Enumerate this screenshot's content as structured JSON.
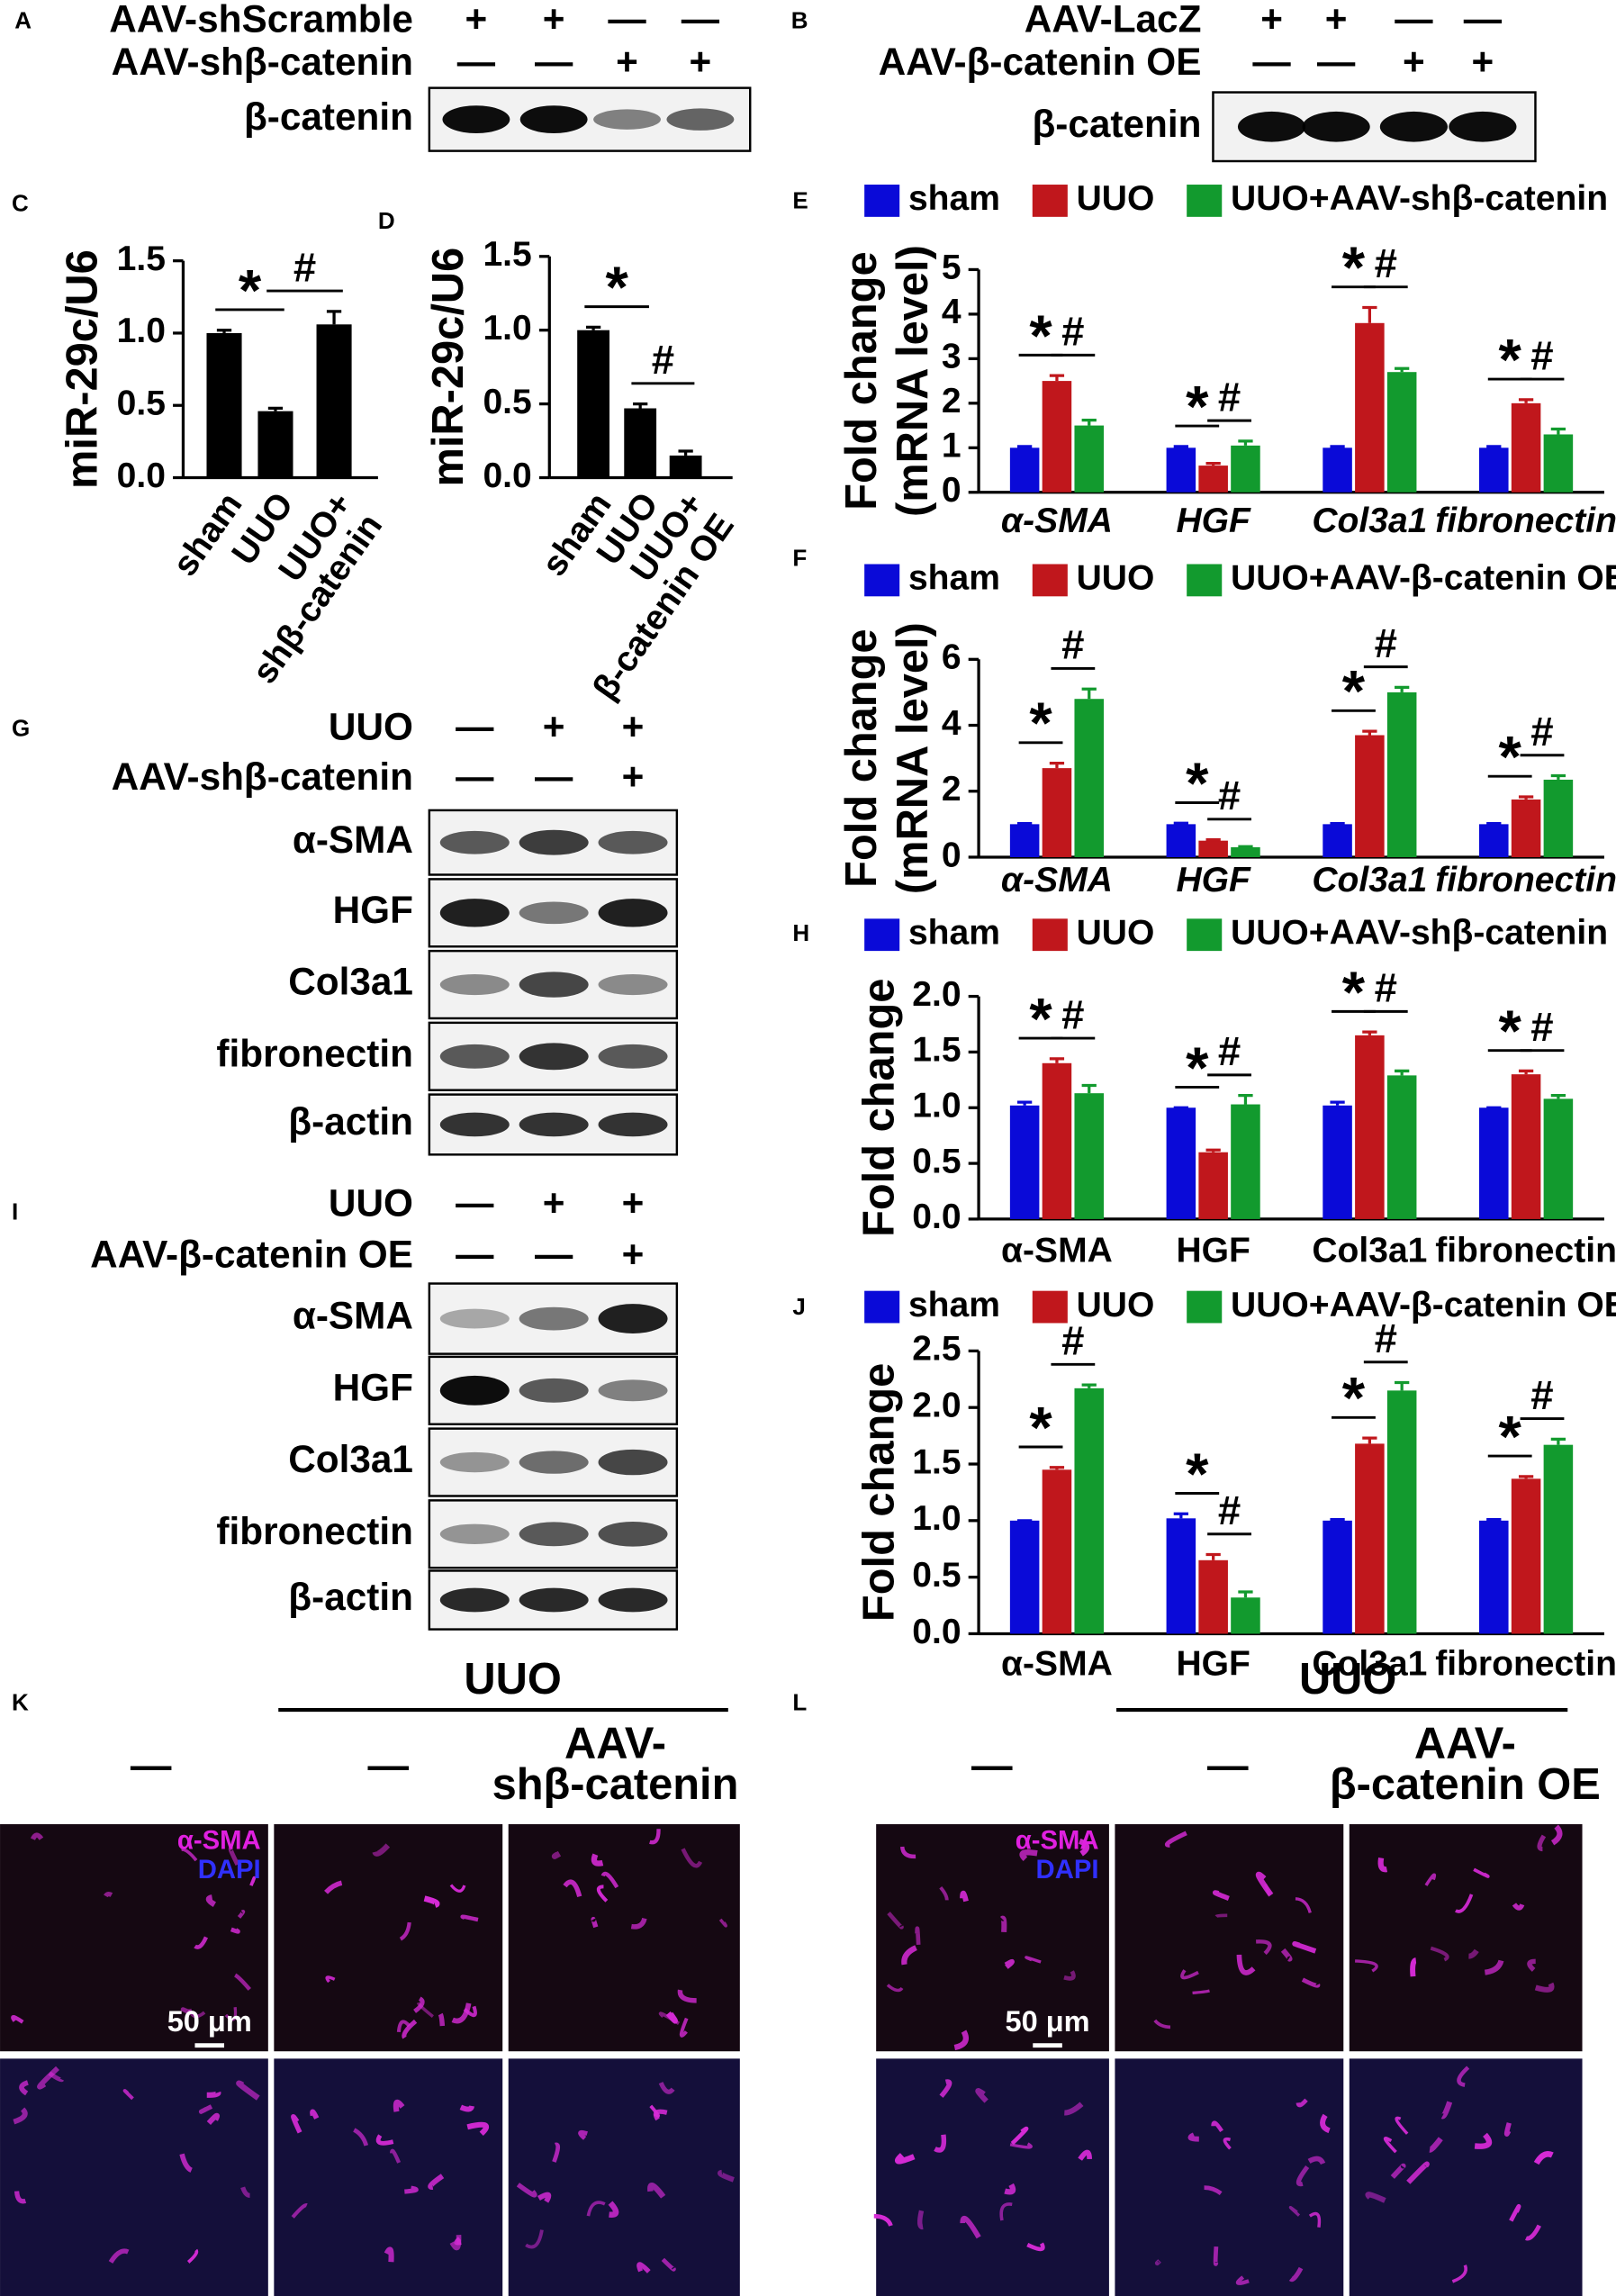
{
  "panel_labels": [
    "A",
    "B",
    "C",
    "D",
    "E",
    "F",
    "G",
    "H",
    "I",
    "J",
    "K",
    "L"
  ],
  "blots": [
    {
      "treatments": [
        {
          "label": "AAV-shScramble",
          "signs": [
            "+",
            "+",
            "—",
            "—"
          ]
        },
        {
          "label": "AAV-shβ-catenin",
          "signs": [
            "—",
            "—",
            "+",
            "+"
          ]
        }
      ],
      "bands": [
        "β-catenin"
      ]
    },
    {
      "treatments": [
        {
          "label": "AAV-LacZ",
          "signs": [
            "+",
            "+",
            "—",
            "—"
          ]
        },
        {
          "label": "AAV-β-catenin OE",
          "signs": [
            "—",
            "—",
            "+",
            "+"
          ]
        }
      ],
      "bands": [
        "β-catenin"
      ]
    },
    {
      "treatments": [
        {
          "label": "UUO",
          "signs": [
            "—",
            "+",
            "+"
          ]
        },
        {
          "label": "AAV-shβ-catenin",
          "signs": [
            "—",
            "—",
            "+"
          ]
        }
      ],
      "bands": [
        "α-SMA",
        "HGF",
        "Col3a1",
        "fibronectin",
        "β-actin"
      ]
    },
    {
      "treatments": [
        {
          "label": "UUO",
          "signs": [
            "—",
            "+",
            "+"
          ]
        },
        {
          "label": "AAV-β-catenin OE",
          "signs": [
            "—",
            "—",
            "+"
          ]
        }
      ],
      "bands": [
        "α-SMA",
        "HGF",
        "Col3a1",
        "fibronectin",
        "β-actin"
      ]
    }
  ],
  "chart_data": [
    {
      "type": "bar",
      "ylabel": "miR-29c/U6",
      "categories": [
        "sham",
        "UUO",
        "UUO+ shβ-catenin"
      ],
      "values": [
        1,
        0.46,
        1.06
      ],
      "errors": [
        0.02,
        0.02,
        0.09
      ],
      "color": "#000000",
      "ylim": [
        0,
        1.5
      ],
      "yticks": [
        {
          "value": 0,
          "label": "0.0"
        },
        0.5,
        {
          "value": 1,
          "label": "1.0"
        },
        1.5
      ],
      "markers": [
        "*",
        "#"
      ]
    },
    {
      "type": "bar",
      "ylabel": "miR-29c/U6",
      "categories": [
        "sham",
        "UUO",
        "UUO+ β-catenin OE"
      ],
      "values": [
        1,
        0.47,
        0.15
      ],
      "errors": [
        0.02,
        0.03,
        0.03
      ],
      "color": "#000000",
      "ylim": [
        0,
        1.5
      ],
      "yticks": [
        {
          "value": 0,
          "label": "0.0"
        },
        0.5,
        {
          "value": 1,
          "label": "1.0"
        },
        1.5
      ],
      "markers": [
        "*",
        "#"
      ]
    },
    {
      "type": "bar",
      "ylabel": [
        "Fold change",
        "(mRNA level)"
      ],
      "categories": [
        "α-SMA",
        "HGF",
        "Col3a1",
        "fibronectin"
      ],
      "category_italic": true,
      "series": [
        {
          "name": "sham",
          "color": "#0a0ad8",
          "values": [
            1,
            1,
            1,
            1
          ],
          "errors": [
            0.03,
            0.03,
            0.03,
            0.03
          ]
        },
        {
          "name": "UUO",
          "color": "#c0171c",
          "values": [
            2.5,
            0.6,
            3.8,
            2
          ],
          "errors": [
            0.12,
            0.05,
            0.35,
            0.08
          ]
        },
        {
          "name": "UUO+AAV-shβ-catenin",
          "color": "#129a2e",
          "values": [
            1.5,
            1.05,
            2.7,
            1.3
          ],
          "errors": [
            0.12,
            0.1,
            0.08,
            0.12
          ]
        }
      ],
      "ylim": [
        0,
        5
      ],
      "yticks": [
        0,
        1,
        2,
        3,
        4,
        5
      ],
      "markers": [
        "*",
        "#"
      ]
    },
    {
      "type": "bar",
      "ylabel": [
        "Fold change",
        "(mRNA level)"
      ],
      "categories": [
        "α-SMA",
        "HGF",
        "Col3a1",
        "fibronectin"
      ],
      "category_italic": true,
      "series": [
        {
          "name": "sham",
          "color": "#0a0ad8",
          "values": [
            1,
            1,
            1,
            1
          ],
          "errors": [
            0.02,
            0.03,
            0.02,
            0.02
          ]
        },
        {
          "name": "UUO",
          "color": "#c0171c",
          "values": [
            2.7,
            0.5,
            3.7,
            1.75
          ],
          "errors": [
            0.15,
            0.03,
            0.12,
            0.08
          ]
        },
        {
          "name": "UUO+AAV-β-catenin OE",
          "color": "#129a2e",
          "values": [
            4.8,
            0.3,
            5,
            2.35
          ],
          "errors": [
            0.3,
            0.02,
            0.15,
            0.12
          ]
        }
      ],
      "ylim": [
        0,
        6
      ],
      "yticks": [
        0,
        2,
        4,
        6
      ],
      "markers": [
        "*",
        "#"
      ]
    },
    {
      "type": "bar",
      "ylabel": "Fold change",
      "categories": [
        "α-SMA",
        "HGF",
        "Col3a1",
        "fibronectin"
      ],
      "category_italic": false,
      "series": [
        {
          "name": "sham",
          "color": "#0a0ad8",
          "values": [
            1.02,
            1,
            1.02,
            1
          ],
          "errors": [
            0.03,
            0,
            0.03,
            0
          ]
        },
        {
          "name": "UUO",
          "color": "#c0171c",
          "values": [
            1.4,
            0.6,
            1.65,
            1.3
          ],
          "errors": [
            0.04,
            0.02,
            0.03,
            0.03
          ]
        },
        {
          "name": "UUO+AAV-shβ-catenin",
          "color": "#129a2e",
          "values": [
            1.13,
            1.03,
            1.29,
            1.08
          ],
          "errors": [
            0.07,
            0.08,
            0.04,
            0.03
          ]
        }
      ],
      "ylim": [
        0,
        2
      ],
      "yticks": [
        {
          "value": 0,
          "label": "0.0"
        },
        0.5,
        {
          "value": 1,
          "label": "1.0"
        },
        1.5,
        {
          "value": 2,
          "label": "2.0"
        }
      ],
      "markers": [
        "*",
        "#"
      ]
    },
    {
      "type": "bar",
      "ylabel": "Fold change",
      "categories": [
        "α-SMA",
        "HGF",
        "Col3a1",
        "fibronectin"
      ],
      "category_italic": false,
      "series": [
        {
          "name": "sham",
          "color": "#0a0ad8",
          "values": [
            1,
            1.02,
            1,
            1
          ],
          "errors": [
            0,
            0.04,
            0.01,
            0.01
          ]
        },
        {
          "name": "UUO",
          "color": "#c0171c",
          "values": [
            1.45,
            0.65,
            1.68,
            1.37
          ],
          "errors": [
            0.02,
            0.05,
            0.05,
            0.02
          ]
        },
        {
          "name": "UUO+AAV-β-catenin OE",
          "color": "#129a2e",
          "values": [
            2.17,
            0.32,
            2.15,
            1.67
          ],
          "errors": [
            0.03,
            0.05,
            0.07,
            0.05
          ]
        }
      ],
      "ylim": [
        0,
        2.5
      ],
      "yticks": [
        {
          "value": 0,
          "label": "0.0"
        },
        0.5,
        {
          "value": 1,
          "label": "1.0"
        },
        1.5,
        {
          "value": 2,
          "label": "2.0"
        },
        2.5
      ],
      "markers": [
        "*",
        "#"
      ]
    }
  ],
  "images": [
    {
      "header": "UUO",
      "conditions": [
        "—",
        "—"
      ],
      "treatment": [
        "AAV-",
        "shβ-catenin"
      ],
      "stain_labels": [
        "α-SMA",
        "DAPI"
      ],
      "scale_bar": "50 μm"
    },
    {
      "header": "UUO",
      "conditions": [
        "—",
        "—"
      ],
      "treatment": [
        "AAV-",
        "β-catenin OE"
      ],
      "stain_labels": [
        "α-SMA",
        "DAPI"
      ],
      "scale_bar": "50 μm"
    }
  ]
}
